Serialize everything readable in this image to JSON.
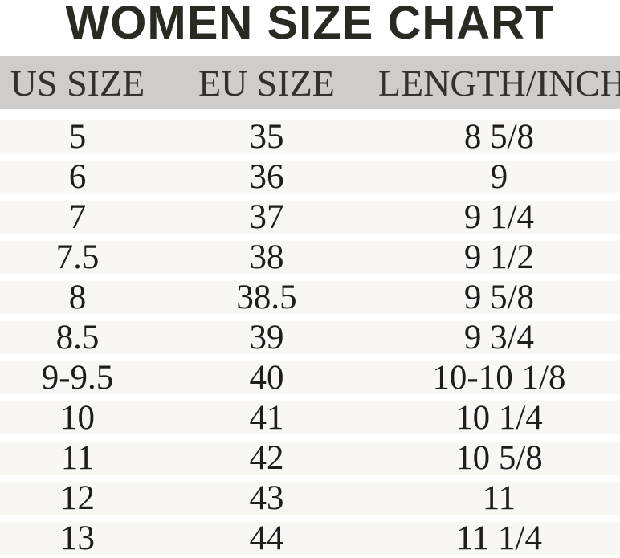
{
  "chart_data": {
    "type": "table",
    "title": "WOMEN SIZE CHART",
    "columns": [
      "US SIZE",
      "EU SIZE",
      "LENGTH/INCH"
    ],
    "rows": [
      [
        "5",
        "35",
        "8 5/8"
      ],
      [
        "6",
        "36",
        "9"
      ],
      [
        "7",
        "37",
        "9 1/4"
      ],
      [
        "7.5",
        "38",
        "9 1/2"
      ],
      [
        "8",
        "38.5",
        "9 5/8"
      ],
      [
        "8.5",
        "39",
        "9 3/4"
      ],
      [
        "9-9.5",
        "40",
        "10-10 1/8"
      ],
      [
        "10",
        "41",
        "10 1/4"
      ],
      [
        "11",
        "42",
        "10 5/8"
      ],
      [
        "12",
        "43",
        "11"
      ],
      [
        "13",
        "44",
        "11 1/4"
      ]
    ]
  },
  "colors": {
    "title_text": "#2a2922",
    "header_bg": "#cecdcb",
    "header_text": "#33312d",
    "row_bg": "#f8f7f3",
    "row_text": "#1e1d1a",
    "page_bg": "#ffffff"
  }
}
